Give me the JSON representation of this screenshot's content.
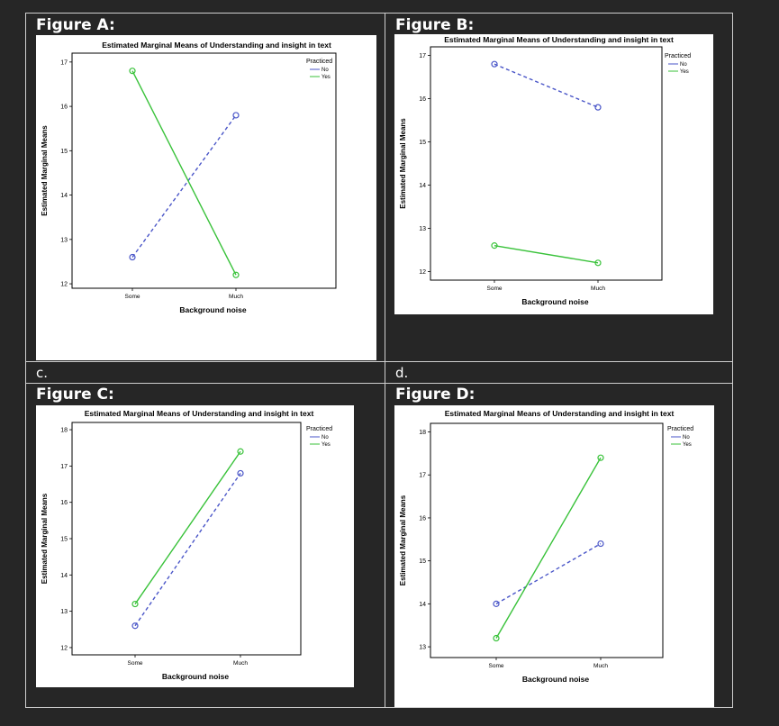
{
  "panels": [
    {
      "caption": "Figure A:",
      "chart_data": {
        "type": "line",
        "title": "Estimated Marginal Means of Understanding and insight in text",
        "xlabel": "Background noise",
        "ylabel": "Estimated Marginal Means",
        "categories": [
          "Some",
          "Much"
        ],
        "ylim": [
          11.9,
          17.2
        ],
        "yticks": [
          12,
          13,
          14,
          15,
          16,
          17
        ],
        "legend": {
          "title": "Practiced",
          "placement": "top-right"
        },
        "series": [
          {
            "name": "No",
            "values": [
              12.6,
              15.8
            ],
            "color": "#4a56c8",
            "dashed": true
          },
          {
            "name": "Yes",
            "values": [
              16.8,
              12.2
            ],
            "color": "#39c23a",
            "dashed": false
          }
        ]
      }
    },
    {
      "caption": "Figure B:",
      "chart_data": {
        "type": "line",
        "title": "Estimated Marginal Means of Understanding and insight in text",
        "xlabel": "Background noise",
        "ylabel": "Estimated Marginal Means",
        "categories": [
          "Some",
          "Much"
        ],
        "ylim": [
          11.8,
          17.2
        ],
        "yticks": [
          12,
          13,
          14,
          15,
          16,
          17
        ],
        "legend": {
          "title": "Practiced",
          "placement": "top-right"
        },
        "series": [
          {
            "name": "No",
            "values": [
              16.8,
              15.8
            ],
            "color": "#4a56c8",
            "dashed": true
          },
          {
            "name": "Yes",
            "values": [
              12.6,
              12.2
            ],
            "color": "#39c23a",
            "dashed": false
          }
        ]
      }
    },
    {
      "letter": "c.",
      "caption": "Figure C:",
      "chart_data": {
        "type": "line",
        "title": "Estimated Marginal Means of Understanding and insight in text",
        "xlabel": "Background noise",
        "ylabel": "Estimated Marginal Means",
        "categories": [
          "Some",
          "Much"
        ],
        "ylim": [
          11.8,
          18.2
        ],
        "yticks": [
          12,
          13,
          14,
          15,
          16,
          17,
          18
        ],
        "legend": {
          "title": "Practiced",
          "placement": "top-right"
        },
        "series": [
          {
            "name": "No",
            "values": [
              12.6,
              16.8
            ],
            "color": "#4a56c8",
            "dashed": true
          },
          {
            "name": "Yes",
            "values": [
              13.2,
              17.4
            ],
            "color": "#39c23a",
            "dashed": false
          }
        ]
      }
    },
    {
      "letter": "d.",
      "caption": "Figure D:",
      "chart_data": {
        "type": "line",
        "title": "Estimated Marginal Means of Understanding and insight in text",
        "xlabel": "Background noise",
        "ylabel": "Estimated Marginal Means",
        "categories": [
          "Some",
          "Much"
        ],
        "ylim": [
          12.75,
          18.2
        ],
        "yticks": [
          13,
          14,
          15,
          16,
          17,
          18
        ],
        "legend": {
          "title": "Practiced",
          "placement": "top-right"
        },
        "series": [
          {
            "name": "No",
            "values": [
              14.0,
              15.4
            ],
            "color": "#4a56c8",
            "dashed": true
          },
          {
            "name": "Yes",
            "values": [
              13.2,
              17.4
            ],
            "color": "#39c23a",
            "dashed": false
          }
        ]
      }
    }
  ]
}
